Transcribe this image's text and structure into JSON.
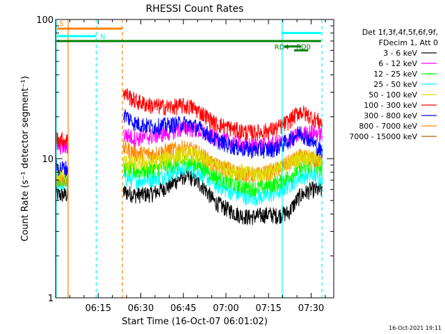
{
  "chart_data": {
    "type": "line",
    "title": "RHESSI Count Rates",
    "xlabel": "Start Time (16-Oct-07 06:01:02)",
    "ylabel": "Count Rate (s⁻¹ detector segment⁻¹)",
    "yscale": "log",
    "ylim": [
      1,
      100
    ],
    "xlim": [
      "06:01:02",
      "07:39:00"
    ],
    "x_ticks": [
      "06:15",
      "06:30",
      "06:45",
      "07:00",
      "07:15",
      "07:30"
    ],
    "x_tick_minutes": [
      15,
      30,
      45,
      60,
      75,
      90
    ],
    "y_ticks": [
      {
        "value": 1,
        "label": "1"
      },
      {
        "value": 10,
        "label": "10"
      },
      {
        "value": 100,
        "label": "100"
      }
    ],
    "grid": false,
    "legend": {
      "placement": "right",
      "header": [
        "Det 1f,3f,4f,5f,6f,9f,",
        "FDecim 1, Att 0"
      ]
    },
    "data_gaps_minutes": [
      [
        4.5,
        23.8
      ]
    ],
    "series": [
      {
        "name": "3 - 6 keV",
        "color": "#000000",
        "x": [
          0,
          4.5,
          24,
          28,
          34,
          40,
          45,
          48,
          52,
          56,
          60,
          64,
          68,
          72,
          75,
          78,
          82,
          86,
          90,
          94
        ],
        "y": [
          5.5,
          5.5,
          5.8,
          5.5,
          5.6,
          6.4,
          7.5,
          7.3,
          6.3,
          4.9,
          4.4,
          4.0,
          3.8,
          3.9,
          4.0,
          3.9,
          4.1,
          5.4,
          6.0,
          5.9
        ]
      },
      {
        "name": "6 - 12 keV",
        "color": "#ff00ff",
        "x": [
          0,
          4.5,
          24,
          28,
          34,
          40,
          45,
          48,
          52,
          56,
          60,
          64,
          68,
          72,
          75,
          78,
          82,
          86,
          90,
          94
        ],
        "y": [
          12.5,
          12,
          15,
          14,
          14.5,
          15.5,
          16.5,
          16.5,
          15.5,
          14,
          13.5,
          13,
          12.5,
          12.5,
          12.5,
          13,
          13.5,
          15,
          15.5,
          15
        ]
      },
      {
        "name": "12 - 25 keV",
        "color": "#00ff00",
        "x": [
          0,
          4.5,
          24,
          28,
          34,
          40,
          45,
          48,
          52,
          56,
          60,
          64,
          68,
          72,
          75,
          78,
          82,
          86,
          90,
          94
        ],
        "y": [
          7.3,
          7.2,
          8.5,
          8.2,
          8.4,
          9.0,
          9.5,
          9.4,
          8.7,
          7.5,
          6.9,
          6.5,
          6.2,
          6.2,
          6.4,
          6.7,
          7.4,
          8.5,
          9.0,
          8.5
        ]
      },
      {
        "name": "25 - 50 keV",
        "color": "#00ffff",
        "x": [
          0,
          4.5,
          24,
          28,
          34,
          40,
          45,
          48,
          52,
          56,
          60,
          64,
          68,
          72,
          75,
          78,
          82,
          86,
          90,
          94
        ],
        "y": [
          6.8,
          6.6,
          7.3,
          7.0,
          7.2,
          7.7,
          8.5,
          8.4,
          7.7,
          6.6,
          6.0,
          5.6,
          5.3,
          5.3,
          5.5,
          5.7,
          6.4,
          7.4,
          7.7,
          7.2
        ]
      },
      {
        "name": "50 - 100 keV",
        "color": "#dddd00",
        "x": [
          0,
          4.5,
          24,
          28,
          34,
          40,
          45,
          48,
          52,
          56,
          60,
          64,
          68,
          72,
          75,
          78,
          82,
          86,
          90,
          94
        ],
        "y": [
          7.8,
          7.7,
          9.5,
          9.2,
          9.4,
          10.2,
          10.8,
          10.8,
          10.0,
          9.0,
          8.5,
          8.2,
          7.8,
          7.8,
          8.0,
          8.3,
          9.2,
          10.2,
          10.3,
          9.8
        ]
      },
      {
        "name": "100 - 300 keV",
        "color": "#ff0000",
        "x": [
          0,
          4.5,
          24,
          28,
          34,
          40,
          45,
          48,
          52,
          56,
          60,
          64,
          68,
          72,
          75,
          78,
          82,
          86,
          90,
          94
        ],
        "y": [
          14,
          13.5,
          30,
          26,
          24,
          23.5,
          24,
          23.5,
          21,
          18,
          17,
          16,
          15.5,
          15.5,
          16,
          16.5,
          18.5,
          22,
          20,
          18
        ]
      },
      {
        "name": "300 - 800 keV",
        "color": "#0000ff",
        "x": [
          0,
          4.5,
          24,
          28,
          34,
          40,
          45,
          48,
          52,
          56,
          60,
          64,
          68,
          72,
          75,
          78,
          82,
          86,
          90,
          94
        ],
        "y": [
          8.7,
          8.5,
          21,
          18,
          17,
          17.5,
          18,
          17.5,
          16,
          13.8,
          12.8,
          12,
          11.6,
          11.6,
          11.6,
          12,
          13.5,
          15.5,
          13.5,
          11
        ]
      },
      {
        "name": "800 - 7000 keV",
        "color": "#ff8800",
        "x": [
          0,
          4.5,
          24,
          28,
          34,
          40,
          45,
          48,
          52,
          56,
          60,
          64,
          68,
          72,
          75,
          78,
          82,
          86,
          90,
          94
        ],
        "y": [
          7.3,
          7.1,
          12,
          11,
          10.8,
          11.5,
          12,
          11.6,
          10.5,
          9.0,
          8.5,
          8.0,
          7.7,
          7.7,
          8.0,
          8.4,
          9.4,
          10.3,
          10.0,
          9.5
        ]
      },
      {
        "name": "7000 - 15000 keV",
        "color": "#aa6600",
        "x": [],
        "y": []
      }
    ],
    "annotations": {
      "bars": [
        {
          "label": "S",
          "color": "#ff8000",
          "x0": 0.5,
          "x1": 23.5,
          "y": 86
        },
        {
          "label": "N",
          "color": "#00ffff",
          "x0": 0.5,
          "x1": 14.2,
          "y": 76
        },
        {
          "label": "",
          "color": "#008000",
          "x0": 0.5,
          "x1": 93.5,
          "y": 70
        },
        {
          "label": "RD4",
          "color": "#008000",
          "x0": 80.5,
          "x1": 86.5,
          "y": 64
        },
        {
          "label": "RD0",
          "color": "#008000",
          "x0": 84.0,
          "x1": 89.0,
          "y": 60
        },
        {
          "label": "",
          "color": "#00ffff",
          "x0": 79.5,
          "x1": 93.5,
          "y": 80
        }
      ],
      "vlines": [
        {
          "x": 0.2,
          "color": "#00ffff",
          "dashed": false
        },
        {
          "x": 4.4,
          "color": "#ff8000",
          "dashed": false
        },
        {
          "x": 14.3,
          "color": "#00ffff",
          "dashed": true
        },
        {
          "x": 23.5,
          "color": "#ff8000",
          "dashed": true
        },
        {
          "x": 79.8,
          "color": "#00ffff",
          "dashed": false
        },
        {
          "x": 93.8,
          "color": "#00ffff",
          "dashed": true
        }
      ]
    },
    "timestamp": "16-Oct-2021 19:11"
  }
}
